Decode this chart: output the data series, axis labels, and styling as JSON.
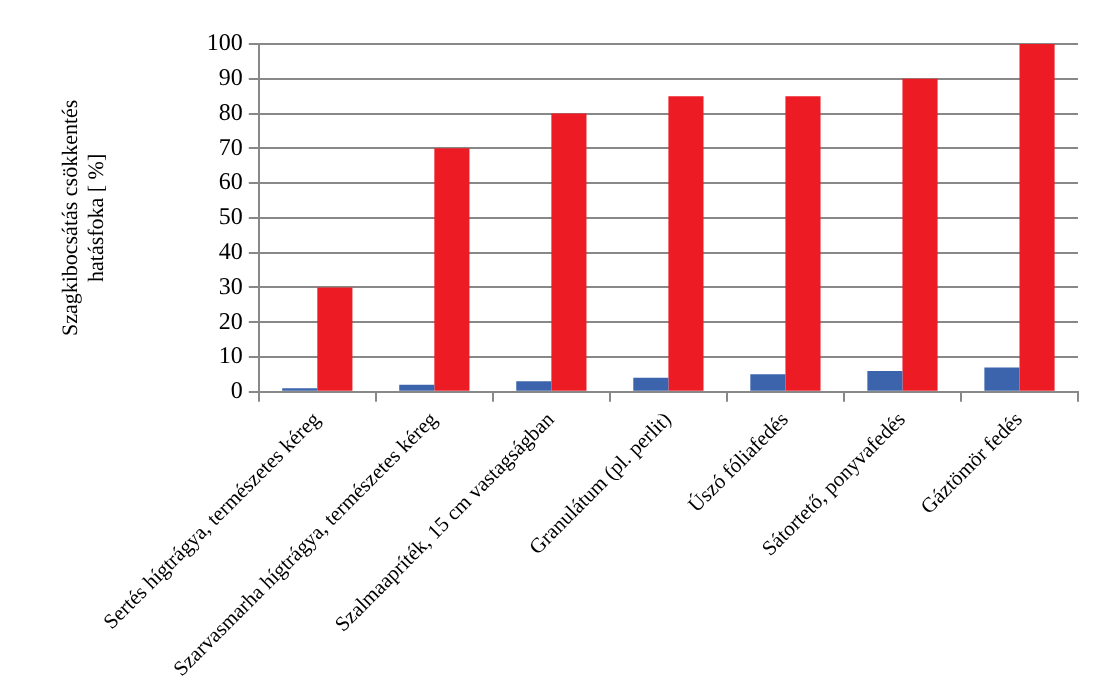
{
  "chart_data": {
    "type": "bar",
    "ylabel": "Szagkibocsátás csökkentés\nhatásfoka [ %]",
    "categories": [
      "Sertés hígtrágya, természetes kéreg",
      "Szarvasmarha hígtrágya, természetes kéreg",
      "Szalmaapríték, 15 cm vastagságban",
      "Granulátum (pl. perlit)",
      "Úszó fóliafedés",
      "Sátortető, ponyvafedés",
      "Gáztömör fedés"
    ],
    "series": [
      {
        "color": "#3b64ad",
        "values": [
          1,
          2,
          3,
          4,
          5,
          6,
          7
        ]
      },
      {
        "color": "#ed1c24",
        "values": [
          30,
          70,
          80,
          85,
          85,
          90,
          100
        ]
      }
    ],
    "ylim": [
      0,
      100
    ],
    "yticks": [
      0,
      10,
      20,
      30,
      40,
      50,
      60,
      70,
      80,
      90,
      100
    ],
    "grid": "y",
    "legend": false
  }
}
